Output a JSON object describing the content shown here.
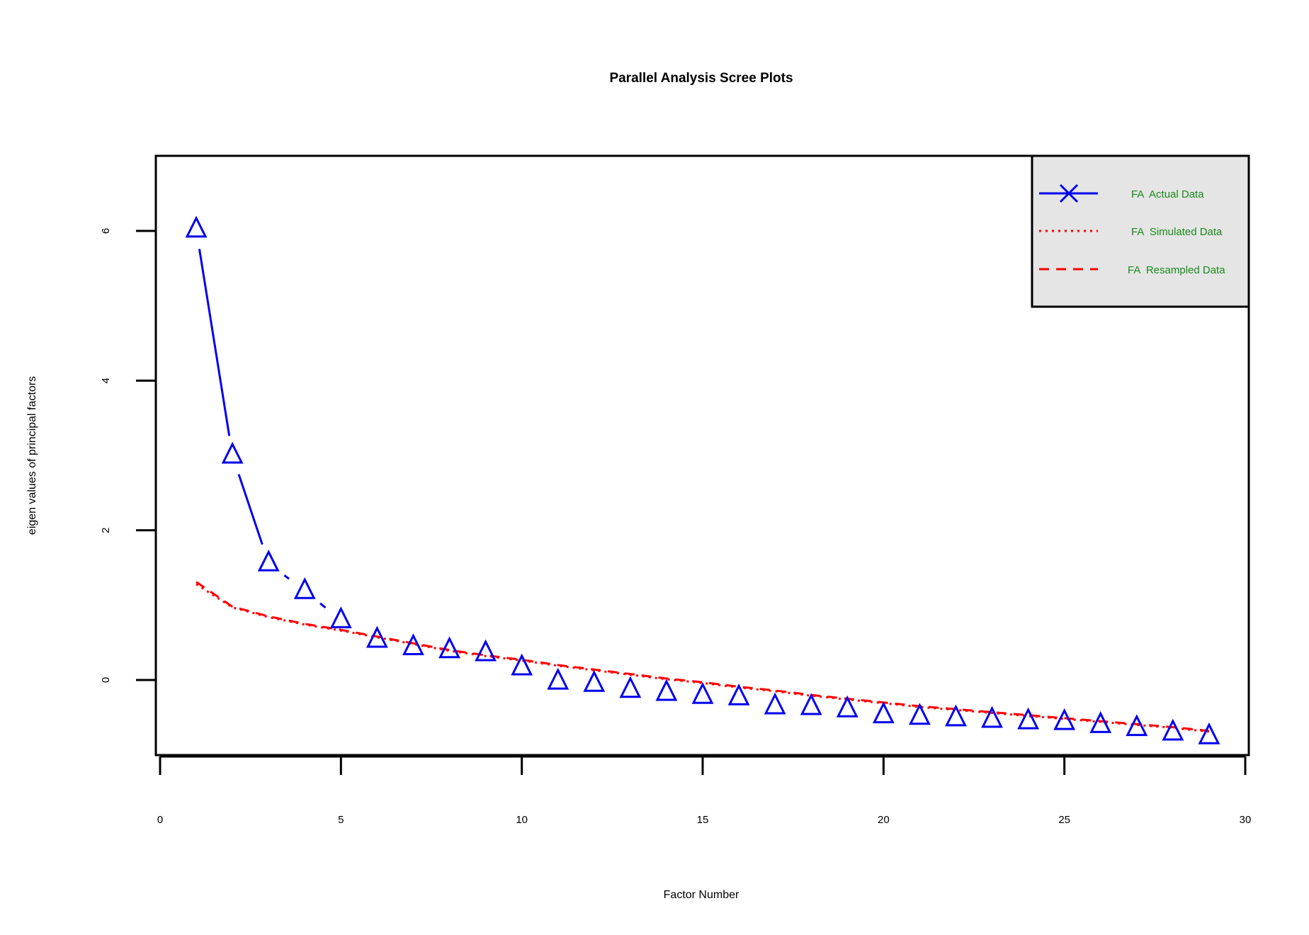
{
  "chart_data": {
    "type": "line",
    "title": "Parallel Analysis Scree Plots",
    "xlabel": "Factor Number",
    "ylabel": "eigen values of principal factors",
    "xlim": [
      0,
      30
    ],
    "ylim": [
      -1,
      7
    ],
    "x_ticks": [
      "0",
      "5",
      "10",
      "15",
      "20",
      "25",
      "30"
    ],
    "y_ticks": [
      "0",
      "2",
      "4",
      "6"
    ],
    "x": [
      1,
      2,
      3,
      4,
      5,
      6,
      7,
      8,
      9,
      10,
      11,
      12,
      13,
      14,
      15,
      16,
      17,
      18,
      19,
      20,
      21,
      22,
      23,
      24,
      25,
      26,
      27,
      28,
      29
    ],
    "series": [
      {
        "name": "FA  Actual Data",
        "color": "#0000ee",
        "style": "solid-then-dashed",
        "marker": "triangle",
        "values": [
          6.02,
          3.0,
          1.56,
          1.19,
          0.8,
          0.54,
          0.44,
          0.4,
          0.36,
          0.17,
          -0.02,
          -0.05,
          -0.13,
          -0.17,
          -0.21,
          -0.23,
          -0.35,
          -0.36,
          -0.39,
          -0.47,
          -0.49,
          -0.51,
          -0.53,
          -0.55,
          -0.56,
          -0.6,
          -0.64,
          -0.7,
          -0.75
        ]
      },
      {
        "name": "FA  Simulated Data",
        "color": "#ff0000",
        "style": "dotted",
        "values": [
          1.28,
          0.97,
          0.84,
          0.74,
          0.66,
          0.57,
          0.48,
          0.39,
          0.32,
          0.26,
          0.19,
          0.13,
          0.07,
          0.01,
          -0.04,
          -0.1,
          -0.15,
          -0.21,
          -0.26,
          -0.31,
          -0.36,
          -0.4,
          -0.44,
          -0.48,
          -0.52,
          -0.56,
          -0.6,
          -0.64,
          -0.69
        ]
      },
      {
        "name": "FA  Resampled Data",
        "color": "#ff0000",
        "style": "dashed",
        "values": [
          1.31,
          0.98,
          0.85,
          0.75,
          0.67,
          0.58,
          0.49,
          0.4,
          0.33,
          0.27,
          0.2,
          0.14,
          0.08,
          0.02,
          -0.03,
          -0.09,
          -0.14,
          -0.2,
          -0.25,
          -0.3,
          -0.35,
          -0.39,
          -0.43,
          -0.47,
          -0.51,
          -0.55,
          -0.59,
          -0.63,
          -0.68
        ]
      }
    ],
    "legend": {
      "placement": "top-right",
      "background": "#e5e5e5",
      "entries": [
        "FA  Actual Data",
        "FA  Simulated Data",
        "FA  Resampled Data"
      ]
    },
    "grid": false
  }
}
